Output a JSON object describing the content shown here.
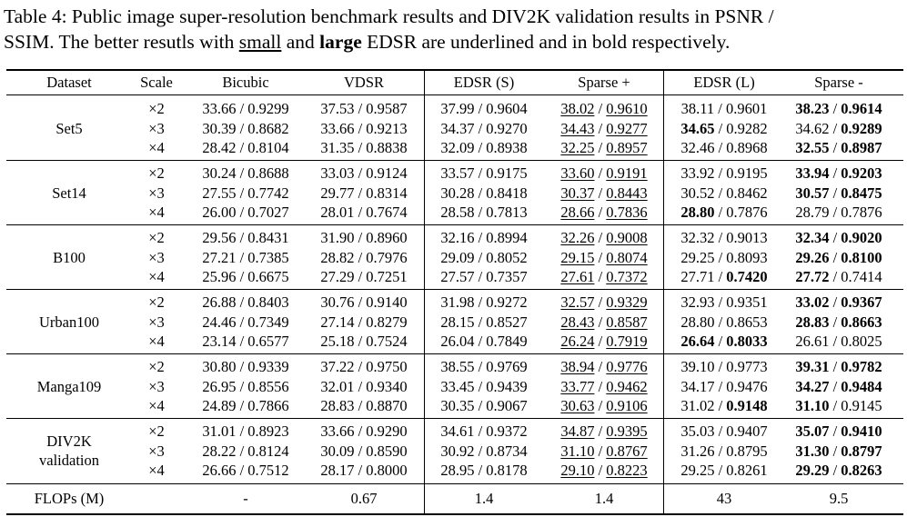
{
  "caption": {
    "line1": "Table 4: Public image super-resolution benchmark results and DIV2K validation results in PSNR /",
    "line2_a": "SSIM. The better resutls with ",
    "line2_small": "small",
    "line2_b": " and ",
    "line2_large": "large",
    "line2_c": " EDSR are underlined and in bold respectively."
  },
  "headers": [
    "Dataset",
    "Scale",
    "Bicubic",
    "VDSR",
    "EDSR (S)",
    "Sparse +",
    "EDSR (L)",
    "Sparse -"
  ],
  "groups": [
    {
      "name": "Set5",
      "rows": [
        {
          "scale": "×2",
          "bicubic": "33.66 / 0.9299",
          "vdsr": "37.53 / 0.9587",
          "edsr_s": "37.99 / 0.9604",
          "sp_p": "38.02",
          "sp_s": "0.9610",
          "sp_pu": true,
          "sp_su": true,
          "edsrl_p": "38.11",
          "edsrl_s": "0.9601",
          "edsrl_pb": false,
          "edsrl_sb": false,
          "sm_p": "38.23",
          "sm_s": "0.9614",
          "sm_pb": true,
          "sm_sb": true
        },
        {
          "scale": "×3",
          "bicubic": "30.39 / 0.8682",
          "vdsr": "33.66 / 0.9213",
          "edsr_s": "34.37 / 0.9270",
          "sp_p": "34.43",
          "sp_s": "0.9277",
          "sp_pu": true,
          "sp_su": true,
          "edsrl_p": "34.65",
          "edsrl_s": "0.9282",
          "edsrl_pb": true,
          "edsrl_sb": false,
          "sm_p": "34.62",
          "sm_s": "0.9289",
          "sm_pb": false,
          "sm_sb": true
        },
        {
          "scale": "×4",
          "bicubic": "28.42 / 0.8104",
          "vdsr": "31.35 / 0.8838",
          "edsr_s": "32.09 / 0.8938",
          "sp_p": "32.25",
          "sp_s": "0.8957",
          "sp_pu": true,
          "sp_su": true,
          "edsrl_p": "32.46",
          "edsrl_s": "0.8968",
          "edsrl_pb": false,
          "edsrl_sb": false,
          "sm_p": "32.55",
          "sm_s": "0.8987",
          "sm_pb": true,
          "sm_sb": true
        }
      ]
    },
    {
      "name": "Set14",
      "rows": [
        {
          "scale": "×2",
          "bicubic": "30.24 / 0.8688",
          "vdsr": "33.03 / 0.9124",
          "edsr_s": "33.57 / 0.9175",
          "sp_p": "33.60",
          "sp_s": "0.9191",
          "sp_pu": true,
          "sp_su": true,
          "edsrl_p": "33.92",
          "edsrl_s": "0.9195",
          "edsrl_pb": false,
          "edsrl_sb": false,
          "sm_p": "33.94",
          "sm_s": "0.9203",
          "sm_pb": true,
          "sm_sb": true
        },
        {
          "scale": "×3",
          "bicubic": "27.55 / 0.7742",
          "vdsr": "29.77 / 0.8314",
          "edsr_s": "30.28 / 0.8418",
          "sp_p": "30.37",
          "sp_s": "0.8443",
          "sp_pu": true,
          "sp_su": true,
          "edsrl_p": "30.52",
          "edsrl_s": "0.8462",
          "edsrl_pb": false,
          "edsrl_sb": false,
          "sm_p": "30.57",
          "sm_s": "0.8475",
          "sm_pb": true,
          "sm_sb": true
        },
        {
          "scale": "×4",
          "bicubic": "26.00 / 0.7027",
          "vdsr": "28.01 / 0.7674",
          "edsr_s": "28.58 / 0.7813",
          "sp_p": "28.66",
          "sp_s": "0.7836",
          "sp_pu": true,
          "sp_su": true,
          "edsrl_p": "28.80",
          "edsrl_s": "0.7876",
          "edsrl_pb": true,
          "edsrl_sb": false,
          "sm_p": "28.79",
          "sm_s": "0.7876",
          "sm_pb": false,
          "sm_sb": false
        }
      ]
    },
    {
      "name": "B100",
      "rows": [
        {
          "scale": "×2",
          "bicubic": "29.56 / 0.8431",
          "vdsr": "31.90 / 0.8960",
          "edsr_s": "32.16 / 0.8994",
          "sp_p": "32.26",
          "sp_s": "0.9008",
          "sp_pu": true,
          "sp_su": true,
          "edsrl_p": "32.32",
          "edsrl_s": "0.9013",
          "edsrl_pb": false,
          "edsrl_sb": false,
          "sm_p": "32.34",
          "sm_s": "0.9020",
          "sm_pb": true,
          "sm_sb": true
        },
        {
          "scale": "×3",
          "bicubic": "27.21 / 0.7385",
          "vdsr": "28.82 / 0.7976",
          "edsr_s": "29.09 / 0.8052",
          "sp_p": "29.15",
          "sp_s": "0.8074",
          "sp_pu": true,
          "sp_su": true,
          "edsrl_p": "29.25",
          "edsrl_s": "0.8093",
          "edsrl_pb": false,
          "edsrl_sb": false,
          "sm_p": "29.26",
          "sm_s": "0.8100",
          "sm_pb": true,
          "sm_sb": true
        },
        {
          "scale": "×4",
          "bicubic": "25.96 / 0.6675",
          "vdsr": "27.29 / 0.7251",
          "edsr_s": "27.57 / 0.7357",
          "sp_p": "27.61",
          "sp_s": "0.7372",
          "sp_pu": true,
          "sp_su": true,
          "edsrl_p": "27.71",
          "edsrl_s": "0.7420",
          "edsrl_pb": false,
          "edsrl_sb": true,
          "sm_p": "27.72",
          "sm_s": "0.7414",
          "sm_pb": true,
          "sm_sb": false
        }
      ]
    },
    {
      "name": "Urban100",
      "rows": [
        {
          "scale": "×2",
          "bicubic": "26.88 / 0.8403",
          "vdsr": "30.76 / 0.9140",
          "edsr_s": "31.98 / 0.9272",
          "sp_p": "32.57",
          "sp_s": "0.9329",
          "sp_pu": true,
          "sp_su": true,
          "edsrl_p": "32.93",
          "edsrl_s": "0.9351",
          "edsrl_pb": false,
          "edsrl_sb": false,
          "sm_p": "33.02",
          "sm_s": "0.9367",
          "sm_pb": true,
          "sm_sb": true
        },
        {
          "scale": "×3",
          "bicubic": "24.46 / 0.7349",
          "vdsr": "27.14 / 0.8279",
          "edsr_s": "28.15 / 0.8527",
          "sp_p": "28.43",
          "sp_s": "0.8587",
          "sp_pu": true,
          "sp_su": true,
          "edsrl_p": "28.80",
          "edsrl_s": "0.8653",
          "edsrl_pb": false,
          "edsrl_sb": false,
          "sm_p": "28.83",
          "sm_s": "0.8663",
          "sm_pb": true,
          "sm_sb": true
        },
        {
          "scale": "×4",
          "bicubic": "23.14 / 0.6577",
          "vdsr": "25.18 / 0.7524",
          "edsr_s": "26.04 / 0.7849",
          "sp_p": "26.24",
          "sp_s": "0.7919",
          "sp_pu": true,
          "sp_su": true,
          "edsrl_p": "26.64",
          "edsrl_s": "0.8033",
          "edsrl_pb": true,
          "edsrl_sb": true,
          "sm_p": "26.61",
          "sm_s": "0.8025",
          "sm_pb": false,
          "sm_sb": false
        }
      ]
    },
    {
      "name": "Manga109",
      "rows": [
        {
          "scale": "×2",
          "bicubic": "30.80 / 0.9339",
          "vdsr": "37.22 / 0.9750",
          "edsr_s": "38.55 / 0.9769",
          "sp_p": "38.94",
          "sp_s": "0.9776",
          "sp_pu": true,
          "sp_su": true,
          "edsrl_p": "39.10",
          "edsrl_s": "0.9773",
          "edsrl_pb": false,
          "edsrl_sb": false,
          "sm_p": "39.31",
          "sm_s": "0.9782",
          "sm_pb": true,
          "sm_sb": true
        },
        {
          "scale": "×3",
          "bicubic": "26.95 / 0.8556",
          "vdsr": "32.01 / 0.9340",
          "edsr_s": "33.45 / 0.9439",
          "sp_p": "33.77",
          "sp_s": "0.9462",
          "sp_pu": true,
          "sp_su": true,
          "edsrl_p": "34.17",
          "edsrl_s": "0.9476",
          "edsrl_pb": false,
          "edsrl_sb": false,
          "sm_p": "34.27",
          "sm_s": "0.9484",
          "sm_pb": true,
          "sm_sb": true
        },
        {
          "scale": "×4",
          "bicubic": "24.89 / 0.7866",
          "vdsr": "28.83 / 0.8870",
          "edsr_s": "30.35 / 0.9067",
          "sp_p": "30.63",
          "sp_s": "0.9106",
          "sp_pu": true,
          "sp_su": true,
          "edsrl_p": "31.02",
          "edsrl_s": "0.9148",
          "edsrl_pb": false,
          "edsrl_sb": true,
          "sm_p": "31.10",
          "sm_s": "0.9145",
          "sm_pb": true,
          "sm_sb": false
        }
      ]
    },
    {
      "name": "DIV2K",
      "name2": "validation",
      "rows": [
        {
          "scale": "×2",
          "bicubic": "31.01 / 0.8923",
          "vdsr": "33.66 / 0.9290",
          "edsr_s": "34.61 / 0.9372",
          "sp_p": "34.87",
          "sp_s": "0.9395",
          "sp_pu": true,
          "sp_su": true,
          "edsrl_p": "35.03",
          "edsrl_s": "0.9407",
          "edsrl_pb": false,
          "edsrl_sb": false,
          "sm_p": "35.07",
          "sm_s": "0.9410",
          "sm_pb": true,
          "sm_sb": true
        },
        {
          "scale": "×3",
          "bicubic": "28.22 / 0.8124",
          "vdsr": "30.09 / 0.8590",
          "edsr_s": "30.92 / 0.8734",
          "sp_p": "31.10",
          "sp_s": "0.8767",
          "sp_pu": true,
          "sp_su": true,
          "edsrl_p": "31.26",
          "edsrl_s": "0.8795",
          "edsrl_pb": false,
          "edsrl_sb": false,
          "sm_p": "31.30",
          "sm_s": "0.8797",
          "sm_pb": true,
          "sm_sb": true
        },
        {
          "scale": "×4",
          "bicubic": "26.66 / 0.7512",
          "vdsr": "28.17 / 0.8000",
          "edsr_s": "28.95 / 0.8178",
          "sp_p": "29.10",
          "sp_s": "0.8223",
          "sp_pu": true,
          "sp_su": true,
          "edsrl_p": "29.25",
          "edsrl_s": "0.8261",
          "edsrl_pb": false,
          "edsrl_sb": false,
          "sm_p": "29.29",
          "sm_s": "0.8263",
          "sm_pb": true,
          "sm_sb": true
        }
      ]
    }
  ],
  "flops": {
    "label": "FLOPs (M)",
    "bicubic": "-",
    "vdsr": "0.67",
    "edsr_s": "1.4",
    "sparse_plus": "1.4",
    "edsr_l": "43",
    "sparse_minus": "9.5"
  }
}
